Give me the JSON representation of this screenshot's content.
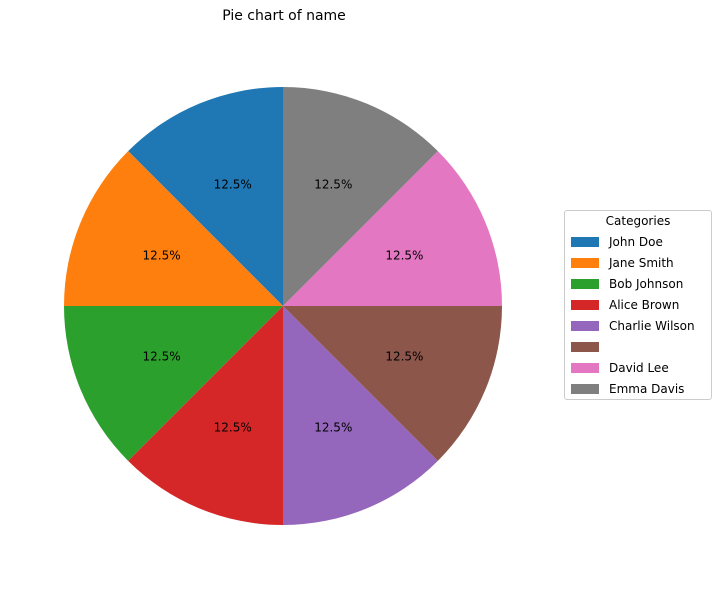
{
  "chart_data": {
    "type": "pie",
    "title": "Pie chart of name",
    "legend_title": "Categories",
    "legend_position": "right",
    "slices": [
      {
        "label": "John Doe",
        "value": 12.5,
        "color": "#1f77b4"
      },
      {
        "label": "Jane Smith",
        "value": 12.5,
        "color": "#ff7f0e"
      },
      {
        "label": "Bob Johnson",
        "value": 12.5,
        "color": "#2ca02c"
      },
      {
        "label": "Alice Brown",
        "value": 12.5,
        "color": "#d62728"
      },
      {
        "label": "Charlie Wilson",
        "value": 12.5,
        "color": "#9467bd"
      },
      {
        "label": "",
        "value": 12.5,
        "color": "#8c564b"
      },
      {
        "label": "David Lee",
        "value": 12.5,
        "color": "#e377c2"
      },
      {
        "label": "Emma Davis",
        "value": 12.5,
        "color": "#7f7f7f"
      }
    ],
    "percent_labels": [
      "12.5%",
      "12.5%",
      "12.5%",
      "12.5%",
      "12.5%",
      "12.5%",
      "12.5%",
      "12.5%"
    ]
  }
}
